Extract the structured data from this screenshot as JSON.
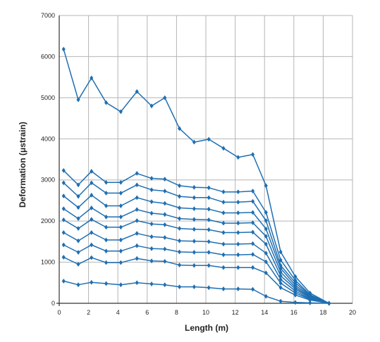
{
  "chart_data": {
    "type": "line",
    "xlabel": "Length (m)",
    "ylabel": "Deformation (μstrain)",
    "xlim": [
      0,
      20
    ],
    "ylim": [
      0,
      7000
    ],
    "xticks": [
      0,
      2,
      4,
      6,
      8,
      10,
      12,
      14,
      16,
      18,
      20
    ],
    "yticks": [
      0,
      1000,
      2000,
      3000,
      4000,
      5000,
      6000,
      7000
    ],
    "grid": true,
    "colors": {
      "series": "#1f6fb2",
      "grid": "#b5b5b5",
      "axis": "#333333",
      "text": "#222222"
    },
    "x": [
      0.3,
      1.3,
      2.2,
      3.2,
      4.2,
      5.3,
      6.3,
      7.2,
      8.2,
      9.2,
      10.2,
      11.2,
      12.2,
      13.2,
      14.1,
      15.1,
      16.1,
      17.1,
      18.4
    ],
    "series": [
      {
        "values": [
          6180,
          4950,
          5480,
          4880,
          4660,
          5150,
          4800,
          5000,
          4250,
          3920,
          3990,
          3770,
          3550,
          3620,
          2860,
          1250,
          650,
          250,
          0
        ]
      },
      {
        "values": [
          3230,
          2880,
          3210,
          2940,
          2940,
          3160,
          3040,
          3020,
          2860,
          2820,
          2810,
          2710,
          2710,
          2730,
          2210,
          1050,
          560,
          210,
          0
        ]
      },
      {
        "values": [
          2930,
          2600,
          2930,
          2680,
          2680,
          2880,
          2760,
          2730,
          2600,
          2570,
          2570,
          2460,
          2460,
          2480,
          2010,
          920,
          500,
          190,
          0
        ]
      },
      {
        "values": [
          2610,
          2330,
          2630,
          2370,
          2370,
          2570,
          2470,
          2430,
          2320,
          2300,
          2290,
          2200,
          2200,
          2210,
          1810,
          850,
          440,
          170,
          0
        ]
      },
      {
        "values": [
          2300,
          2060,
          2320,
          2100,
          2100,
          2280,
          2190,
          2160,
          2060,
          2040,
          2030,
          1950,
          1950,
          1960,
          1630,
          760,
          390,
          150,
          0
        ]
      },
      {
        "values": [
          2030,
          1820,
          2040,
          1850,
          1850,
          2010,
          1930,
          1910,
          1820,
          1800,
          1790,
          1720,
          1720,
          1730,
          1440,
          670,
          350,
          130,
          0
        ]
      },
      {
        "values": [
          1720,
          1520,
          1720,
          1540,
          1540,
          1700,
          1620,
          1600,
          1520,
          1510,
          1500,
          1440,
          1440,
          1450,
          1220,
          580,
          300,
          110,
          0
        ]
      },
      {
        "values": [
          1420,
          1240,
          1420,
          1270,
          1270,
          1400,
          1330,
          1320,
          1250,
          1240,
          1240,
          1180,
          1180,
          1190,
          1010,
          490,
          250,
          100,
          0
        ]
      },
      {
        "values": [
          1120,
          950,
          1110,
          990,
          990,
          1090,
          1030,
          1020,
          930,
          920,
          920,
          870,
          870,
          870,
          740,
          380,
          200,
          80,
          0
        ]
      },
      {
        "values": [
          540,
          450,
          510,
          480,
          450,
          500,
          470,
          450,
          400,
          400,
          380,
          350,
          350,
          340,
          170,
          50,
          20,
          10,
          0
        ]
      }
    ]
  }
}
